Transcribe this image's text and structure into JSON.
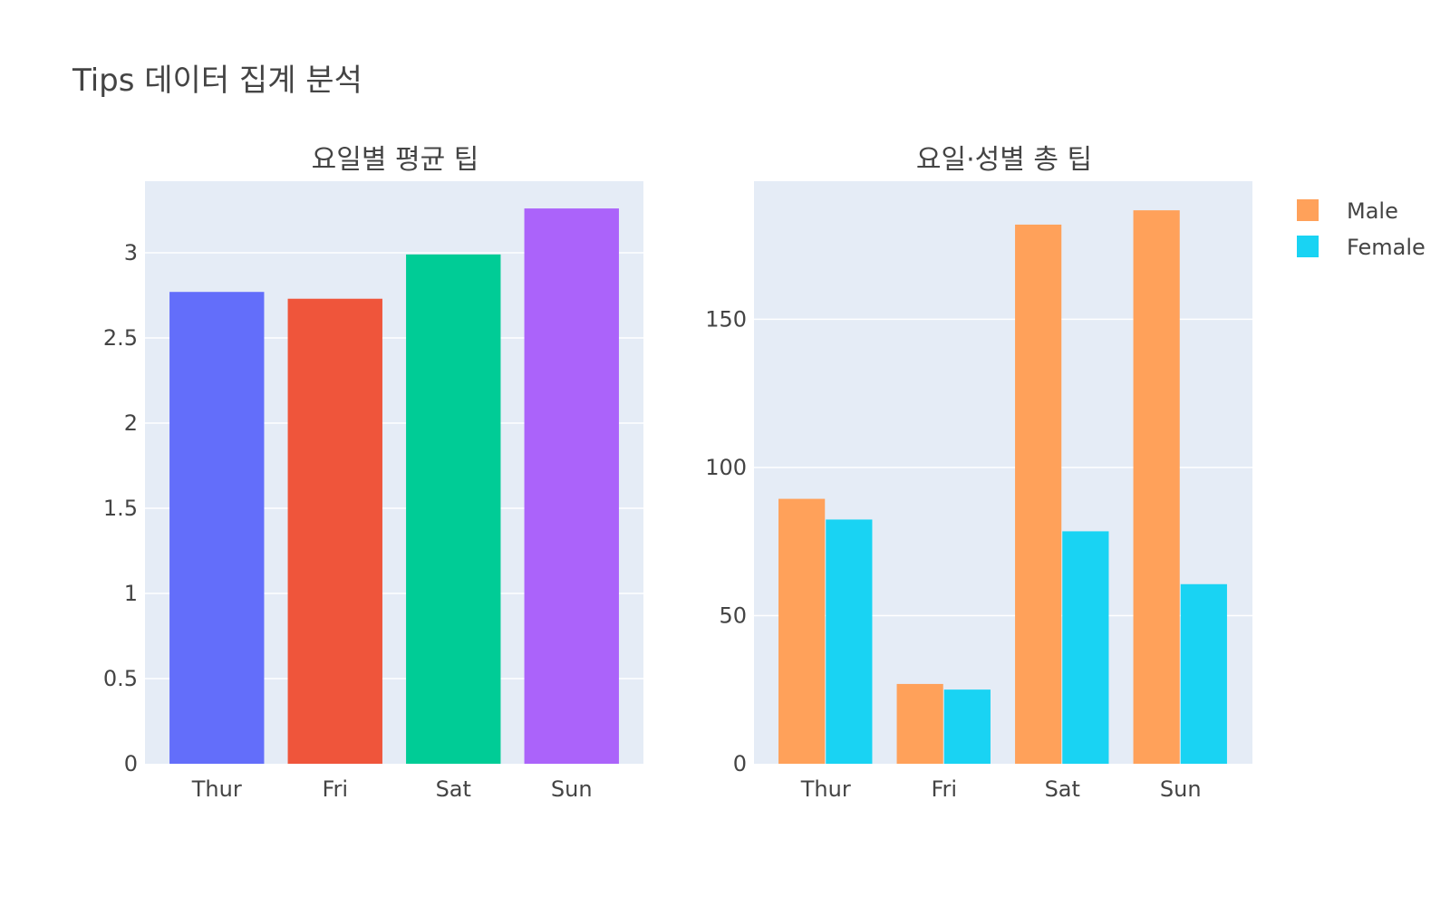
{
  "figure": {
    "title": "Tips 데이터 집계 분석"
  },
  "colors": {
    "plot_bg": "#e5ecf6",
    "grid": "#ffffff",
    "text": "#444444"
  },
  "chart_data": [
    {
      "type": "bar",
      "title": "요일별 평균 팁",
      "xlabel": "",
      "ylabel": "",
      "categories": [
        "Thur",
        "Fri",
        "Sat",
        "Sun"
      ],
      "values": [
        2.77,
        2.73,
        2.99,
        3.26
      ],
      "bar_colors": [
        "#636efa",
        "#ef553b",
        "#00cc96",
        "#ab63fa"
      ],
      "ylim": [
        0,
        3.42
      ],
      "yticks": [
        0,
        0.5,
        1,
        1.5,
        2,
        2.5,
        3
      ],
      "ytick_labels": [
        "0",
        "0.5",
        "1",
        "1.5",
        "2",
        "2.5",
        "3"
      ],
      "grid": true
    },
    {
      "type": "bar",
      "title": "요일·성별 총 팁",
      "xlabel": "",
      "ylabel": "",
      "categories": [
        "Thur",
        "Fri",
        "Sat",
        "Sun"
      ],
      "series": [
        {
          "name": "Male",
          "color": "#ffa15a",
          "values": [
            89.41,
            26.93,
            181.95,
            186.78
          ]
        },
        {
          "name": "Female",
          "color": "#19d3f3",
          "values": [
            82.42,
            25.03,
            78.45,
            60.61
          ]
        }
      ],
      "ylim": [
        0,
        196.6
      ],
      "yticks": [
        0,
        50,
        100,
        150
      ],
      "ytick_labels": [
        "0",
        "50",
        "100",
        "150"
      ],
      "grid": true,
      "legend": "top-right"
    }
  ]
}
